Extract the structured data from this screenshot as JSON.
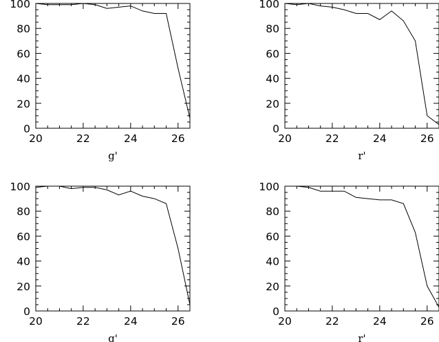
{
  "chart_data": [
    {
      "type": "line",
      "xlabel": "g'",
      "ylabel": "",
      "xlim": [
        20,
        26.5
      ],
      "ylim": [
        0,
        100
      ],
      "x_ticks": [
        "20",
        "22",
        "24",
        "26"
      ],
      "y_ticks": [
        "0",
        "20",
        "40",
        "60",
        "80",
        "100"
      ],
      "grid": false,
      "series": [
        {
          "x": [
            20,
            20.5,
            21,
            21.5,
            22,
            22.5,
            23,
            23.5,
            24,
            24.5,
            25,
            25.5,
            26,
            26.5
          ],
          "y": [
            100,
            99,
            99,
            99,
            100,
            99,
            96,
            97,
            98,
            94,
            92,
            92,
            48,
            8
          ]
        }
      ]
    },
    {
      "type": "line",
      "xlabel": "r'",
      "ylabel": "",
      "xlim": [
        20,
        26.5
      ],
      "ylim": [
        0,
        100
      ],
      "x_ticks": [
        "20",
        "22",
        "24",
        "26"
      ],
      "y_ticks": [
        "0",
        "20",
        "40",
        "60",
        "80",
        "100"
      ],
      "grid": false,
      "series": [
        {
          "x": [
            20,
            20.5,
            21,
            21.5,
            22,
            22.5,
            23,
            23.5,
            24,
            24.5,
            25,
            25.5,
            26,
            26.5
          ],
          "y": [
            100,
            99,
            100,
            98,
            97,
            95,
            92,
            92,
            87,
            94,
            86,
            70,
            10,
            3
          ]
        }
      ]
    },
    {
      "type": "line",
      "xlabel": "g'",
      "ylabel": "",
      "xlim": [
        20,
        26.5
      ],
      "ylim": [
        0,
        100
      ],
      "x_ticks": [
        "20",
        "22",
        "24",
        "26"
      ],
      "y_ticks": [
        "0",
        "20",
        "40",
        "60",
        "80",
        "100"
      ],
      "grid": false,
      "series": [
        {
          "x": [
            20,
            20.5,
            21,
            21.5,
            22,
            22.5,
            23,
            23.5,
            24,
            24.5,
            25,
            25.5,
            26,
            26.5
          ],
          "y": [
            99,
            100,
            100,
            98,
            99,
            99,
            97,
            93,
            96,
            92,
            90,
            86,
            50,
            5
          ]
        }
      ]
    },
    {
      "type": "line",
      "xlabel": "r'",
      "ylabel": "",
      "xlim": [
        20,
        26.5
      ],
      "ylim": [
        0,
        100
      ],
      "x_ticks": [
        "20",
        "22",
        "24",
        "26"
      ],
      "y_ticks": [
        "0",
        "20",
        "40",
        "60",
        "80",
        "100"
      ],
      "grid": false,
      "series": [
        {
          "x": [
            20,
            20.5,
            21,
            21.5,
            22,
            22.5,
            23,
            23.5,
            24,
            24.5,
            25,
            25.5,
            26,
            26.5
          ],
          "y": [
            100,
            100,
            99,
            96,
            96,
            96,
            91,
            90,
            89,
            89,
            86,
            63,
            20,
            3
          ]
        }
      ]
    }
  ]
}
